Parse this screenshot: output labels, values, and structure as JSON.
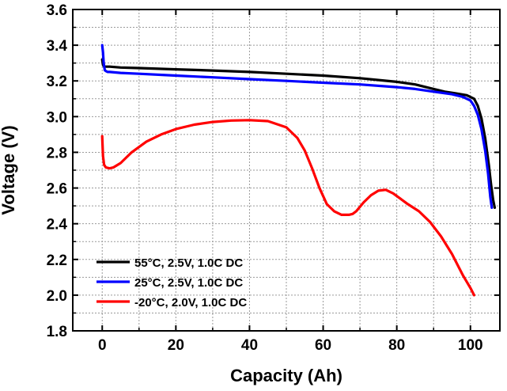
{
  "chart_data": {
    "type": "line",
    "xlabel": "Capacity (Ah)",
    "ylabel": "Voltage (V)",
    "xlim": [
      -8,
      108
    ],
    "ylim": [
      1.8,
      3.6
    ],
    "xticks": [
      0,
      20,
      40,
      60,
      80,
      100
    ],
    "yticks": [
      1.8,
      2.0,
      2.2,
      2.4,
      2.6,
      2.8,
      3.0,
      3.2,
      3.4,
      3.6
    ],
    "xtick_labels": [
      "0",
      "20",
      "40",
      "60",
      "80",
      "100"
    ],
    "ytick_labels": [
      "1.8",
      "2.0",
      "2.2",
      "2.4",
      "2.6",
      "2.8",
      "3.0",
      "3.2",
      "3.4",
      "3.6"
    ],
    "grid": true,
    "legend_position": "bottom-left",
    "series": [
      {
        "name": "55°C, 2.5V, 1.0C DC",
        "color": "#000000",
        "x": [
          0.0,
          0.2,
          0.5,
          1.0,
          2.0,
          5,
          10,
          20,
          30,
          40,
          50,
          60,
          70,
          80,
          85,
          90,
          93,
          96,
          99,
          101,
          102,
          103,
          104,
          105,
          105.6,
          106.2,
          106.6
        ],
        "y": [
          3.32,
          3.29,
          3.28,
          3.28,
          3.28,
          3.275,
          3.272,
          3.265,
          3.258,
          3.25,
          3.24,
          3.23,
          3.215,
          3.195,
          3.18,
          3.155,
          3.14,
          3.13,
          3.12,
          3.1,
          3.06,
          2.99,
          2.88,
          2.73,
          2.62,
          2.53,
          2.49
        ]
      },
      {
        "name": "25°C, 2.5V, 1.0C DC",
        "color": "#0000ff",
        "x": [
          0.0,
          0.2,
          0.4,
          0.7,
          1.0,
          1.5,
          2.0,
          5,
          10,
          20,
          30,
          40,
          50,
          60,
          70,
          80,
          85,
          90,
          95,
          98,
          100,
          101,
          102,
          103,
          104,
          104.8,
          105.4,
          105.8
        ],
        "y": [
          3.4,
          3.36,
          3.3,
          3.26,
          3.255,
          3.25,
          3.25,
          3.245,
          3.24,
          3.23,
          3.22,
          3.21,
          3.2,
          3.19,
          3.18,
          3.165,
          3.155,
          3.14,
          3.125,
          3.11,
          3.09,
          3.06,
          3.01,
          2.93,
          2.81,
          2.68,
          2.55,
          2.49
        ]
      },
      {
        "name": "-20°C, 2.0V, 1.0C DC",
        "color": "#ff0000",
        "x": [
          0.0,
          0.2,
          0.5,
          1.0,
          2.0,
          3.0,
          5,
          8,
          12,
          16,
          20,
          25,
          30,
          35,
          40,
          45,
          50,
          53,
          55,
          57,
          59,
          61,
          63,
          65,
          67,
          68,
          69,
          71,
          73,
          75,
          77,
          79,
          81,
          83,
          86,
          89,
          92,
          95,
          98,
          100,
          101
        ],
        "y": [
          2.89,
          2.78,
          2.73,
          2.715,
          2.71,
          2.715,
          2.74,
          2.8,
          2.86,
          2.9,
          2.93,
          2.955,
          2.97,
          2.978,
          2.98,
          2.975,
          2.94,
          2.88,
          2.81,
          2.71,
          2.6,
          2.51,
          2.47,
          2.45,
          2.45,
          2.455,
          2.47,
          2.52,
          2.56,
          2.585,
          2.59,
          2.57,
          2.54,
          2.51,
          2.47,
          2.41,
          2.33,
          2.23,
          2.11,
          2.04,
          2.0
        ]
      }
    ]
  }
}
